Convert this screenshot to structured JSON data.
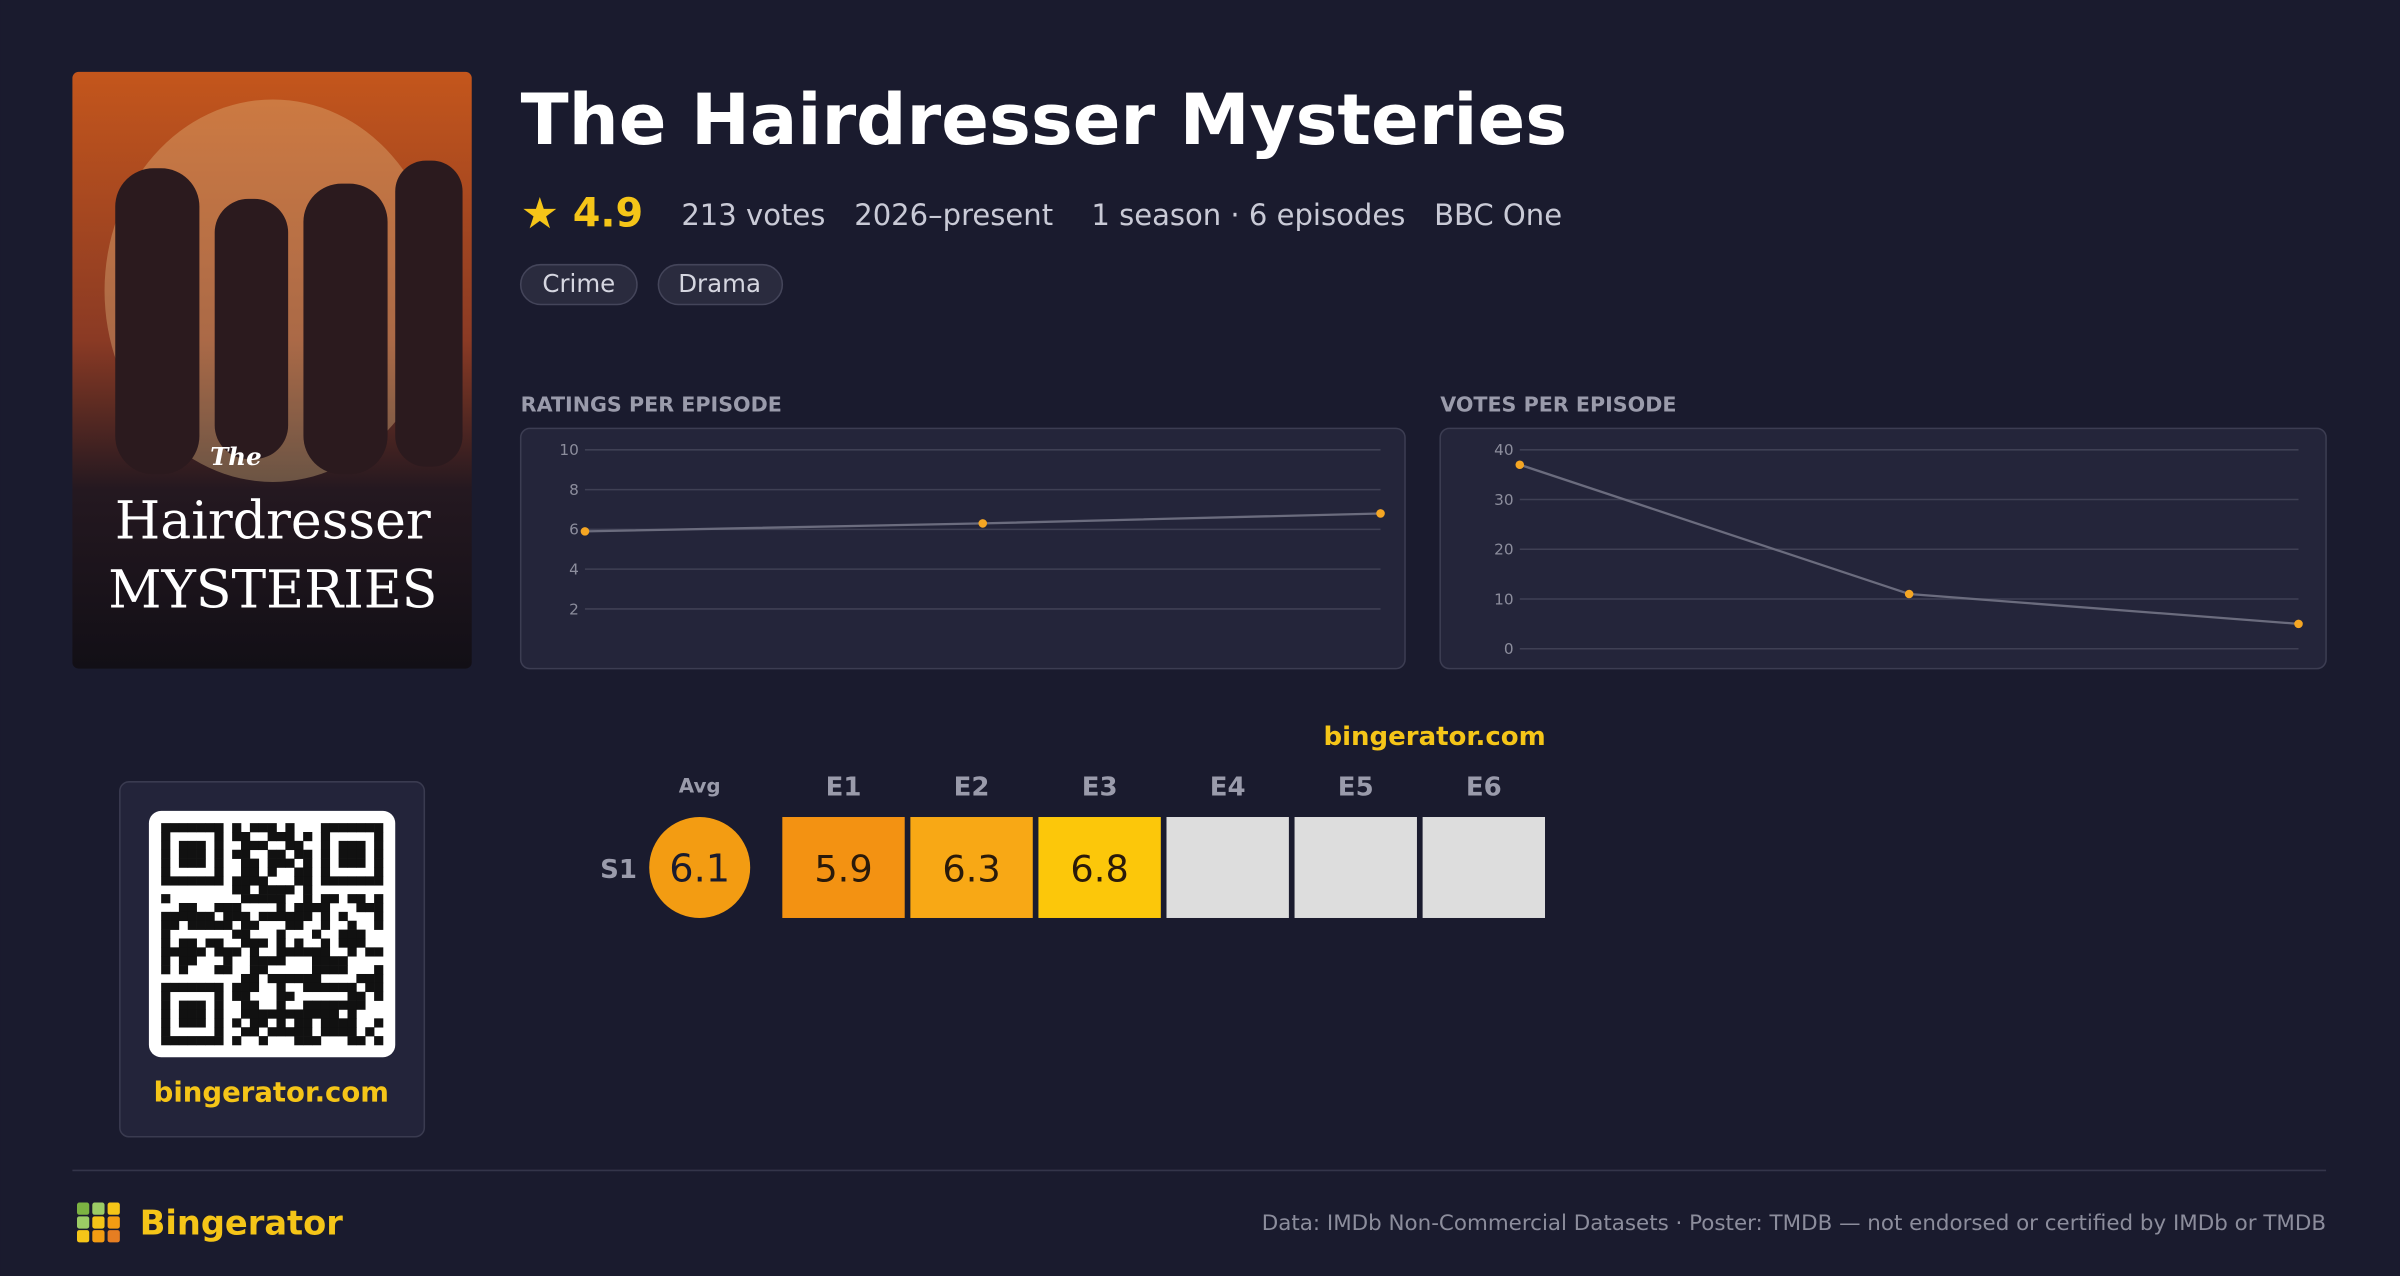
{
  "header": {
    "title": "The Hairdresser Mysteries",
    "rating": 4.9,
    "votes": "213 votes",
    "years": "2026–present",
    "seasons": "1 season · 6 episodes",
    "network": "BBC One",
    "genres": [
      "Crime",
      "Drama"
    ]
  },
  "poster": {
    "title_small": "The",
    "title_main": "Hairdresser",
    "title_sub": "MYSTERIES"
  },
  "chart_data": [
    {
      "type": "line",
      "title": "RATINGS PER EPISODE",
      "categories": [
        null,
        null,
        null
      ],
      "values": [
        5.9,
        6.3,
        6.8
      ],
      "color": "#f5a623",
      "line_color": "#6b6c7e",
      "ylim": [
        0,
        10
      ],
      "yticks": [
        2,
        4,
        6,
        8,
        10
      ],
      "grid": true
    },
    {
      "type": "line",
      "title": "VOTES PER EPISODE",
      "categories": [
        null,
        null,
        null
      ],
      "values": [
        37,
        11,
        5
      ],
      "color": "#f5a623",
      "line_color": "#6b6c7e",
      "ylim": [
        0,
        40
      ],
      "yticks": [
        0,
        10,
        20,
        30,
        40
      ],
      "grid": true
    }
  ],
  "heatmap": {
    "watermark": "bingerator.com",
    "avg_label": "Avg",
    "avg": 6.1,
    "season": "S1",
    "columns": [
      "E1",
      "E2",
      "E3",
      "E4",
      "E5",
      "E6"
    ],
    "cells": [
      5.9,
      6.3,
      6.8,
      null,
      null,
      null
    ],
    "cell_colors": [
      "#f39212",
      "#f8a815",
      "#fcc70a",
      "#dddddd",
      "#dddddd",
      "#dddddd"
    ],
    "avg_color": "#f39c12"
  },
  "qr": {
    "caption": "bingerator.com"
  },
  "footer": {
    "brand": "Bingerator",
    "note": "Data: IMDb Non-Commercial Datasets · Poster: TMDB — not endorsed or certified by IMDb or TMDB"
  }
}
